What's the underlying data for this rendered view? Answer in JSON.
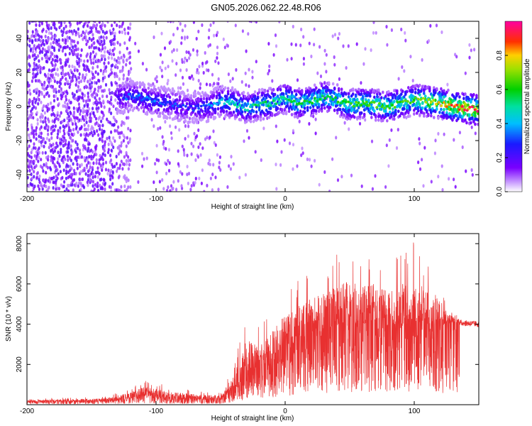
{
  "title": "GN05.2026.062.22.48.R06",
  "colors": {
    "snr_line": "#e83030",
    "frame": "#000000",
    "speck": "#7a2cff"
  },
  "chart_data": [
    {
      "type": "heatmap",
      "name": "spectrogram",
      "xlabel": "Height of straight line (km)",
      "ylabel": "Frequency (Hz)",
      "xlim": [
        -200,
        150
      ],
      "ylim": [
        -50,
        50
      ],
      "xticks": [
        -200,
        -100,
        0,
        100
      ],
      "yticks": [
        -40,
        -20,
        0,
        20,
        40
      ],
      "colorbar": {
        "label": "Normalized spectral amplitude",
        "range": [
          0,
          1
        ],
        "ticks": [
          0.0,
          0.2,
          0.4,
          0.6,
          0.8
        ],
        "colormap": "rainbow (violet → blue → cyan → green → yellow → red → magenta)"
      },
      "ridge": {
        "description": "dominant frequency track (approx.)",
        "x": [
          -130,
          -120,
          -110,
          -100,
          -90,
          -80,
          -70,
          -60,
          -50,
          -40,
          -30,
          -20,
          -10,
          0,
          10,
          20,
          30,
          40,
          50,
          60,
          70,
          80,
          90,
          100,
          110,
          120,
          130,
          140,
          150
        ],
        "frequency": [
          5,
          6,
          5,
          3,
          2,
          0,
          -1,
          0,
          3,
          2,
          -1,
          1,
          2,
          5,
          2,
          3,
          6,
          4,
          1,
          2,
          1,
          0,
          2,
          4,
          3,
          2,
          0,
          -1,
          -2
        ],
        "amplitude": [
          0.25,
          0.3,
          0.3,
          0.3,
          0.28,
          0.25,
          0.25,
          0.3,
          0.4,
          0.45,
          0.45,
          0.5,
          0.5,
          0.5,
          0.55,
          0.55,
          0.55,
          0.55,
          0.6,
          0.6,
          0.6,
          0.6,
          0.6,
          0.6,
          0.7,
          0.75,
          0.85,
          0.9,
          0.9
        ]
      }
    },
    {
      "type": "line",
      "name": "snr",
      "xlabel": "Height of straight line (km)",
      "ylabel": "SNR (10 * v/v)",
      "xlim": [
        -200,
        150
      ],
      "ylim": [
        0,
        8500
      ],
      "xticks": [
        -200,
        -100,
        0,
        100
      ],
      "yticks": [
        2000,
        4000,
        6000,
        8000
      ],
      "envelope": {
        "description": "approximate peak / typical levels of noisy SNR trace",
        "x": [
          -200,
          -140,
          -120,
          -110,
          -100,
          -90,
          -70,
          -50,
          -40,
          -30,
          -20,
          -10,
          0,
          10,
          20,
          30,
          40,
          50,
          60,
          70,
          80,
          90,
          100,
          110,
          120,
          125,
          130,
          140,
          150
        ],
        "peak": [
          300,
          400,
          800,
          1200,
          1100,
          900,
          700,
          600,
          2000,
          4700,
          3800,
          4800,
          5800,
          6300,
          6800,
          7200,
          7600,
          8000,
          7400,
          7700,
          7000,
          7600,
          8200,
          7200,
          6600,
          5200,
          4600,
          4300,
          4200
        ],
        "typical": [
          150,
          200,
          350,
          500,
          450,
          350,
          300,
          300,
          800,
          1500,
          1800,
          2300,
          2800,
          3200,
          3500,
          3700,
          3800,
          3900,
          4000,
          4000,
          3900,
          4000,
          4000,
          3900,
          3800,
          4000,
          4100,
          4050,
          4000
        ]
      }
    }
  ]
}
